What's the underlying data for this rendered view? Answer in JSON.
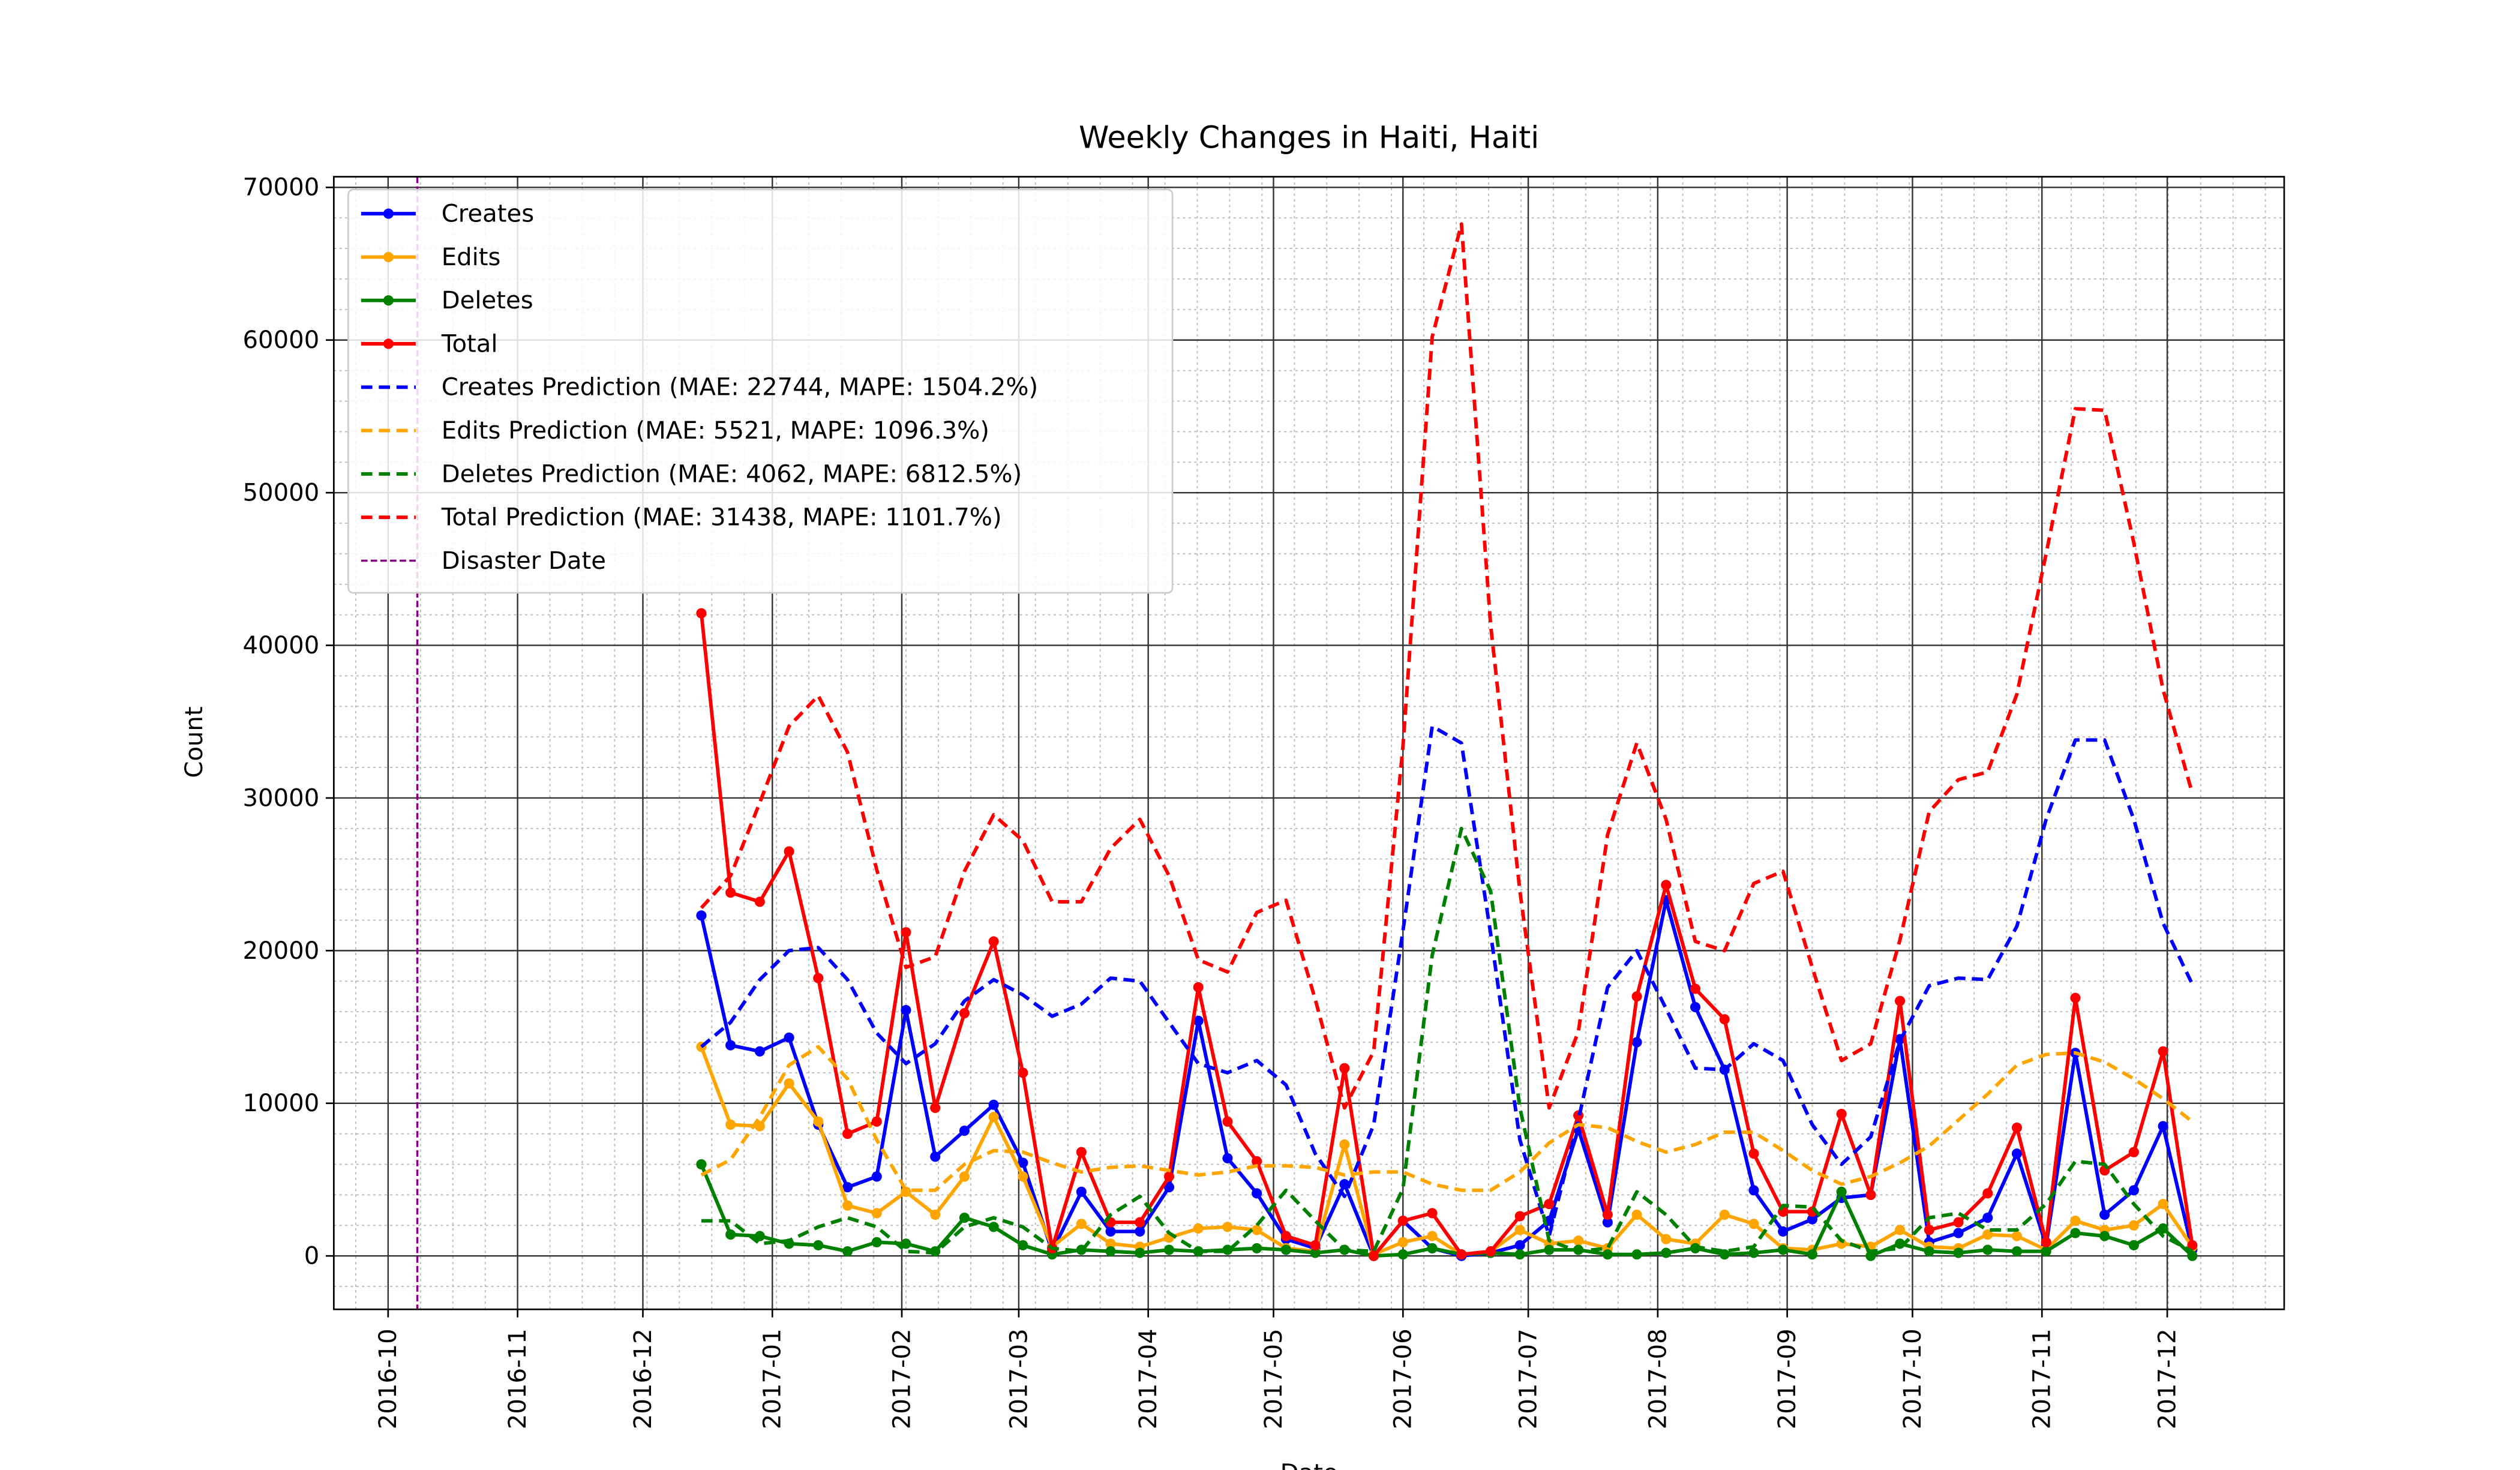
{
  "chart_data": {
    "type": "line",
    "title": "Weekly Changes in Haiti, Haiti",
    "x_label": "Date",
    "y_label": "Count",
    "x": [
      "2016-12-15",
      "2016-12-22",
      "2016-12-29",
      "2017-01-05",
      "2017-01-12",
      "2017-01-19",
      "2017-01-26",
      "2017-02-02",
      "2017-02-09",
      "2017-02-16",
      "2017-02-23",
      "2017-03-02",
      "2017-03-09",
      "2017-03-16",
      "2017-03-23",
      "2017-03-30",
      "2017-04-06",
      "2017-04-13",
      "2017-04-20",
      "2017-04-27",
      "2017-05-04",
      "2017-05-11",
      "2017-05-18",
      "2017-05-25",
      "2017-06-01",
      "2017-06-08",
      "2017-06-15",
      "2017-06-22",
      "2017-06-29",
      "2017-07-06",
      "2017-07-13",
      "2017-07-20",
      "2017-07-27",
      "2017-08-03",
      "2017-08-10",
      "2017-08-17",
      "2017-08-24",
      "2017-08-31",
      "2017-09-07",
      "2017-09-14",
      "2017-09-21",
      "2017-09-28",
      "2017-10-05",
      "2017-10-12",
      "2017-10-19",
      "2017-10-26",
      "2017-11-02",
      "2017-11-09",
      "2017-11-16",
      "2017-11-23",
      "2017-11-30",
      "2017-12-07"
    ],
    "xlim": [
      "2016-09-18",
      "2017-12-29"
    ],
    "xticks": [
      "2016-10",
      "2016-11",
      "2016-12",
      "2017-01",
      "2017-02",
      "2017-03",
      "2017-04",
      "2017-05",
      "2017-06",
      "2017-07",
      "2017-08",
      "2017-09",
      "2017-10",
      "2017-11",
      "2017-12"
    ],
    "ylim": [
      -3500,
      70700
    ],
    "yticks": [
      0,
      10000,
      20000,
      30000,
      40000,
      50000,
      60000,
      70000
    ],
    "grid": true,
    "minor_grid": true,
    "legend": "upper left",
    "disaster_date": "2016-10-08",
    "disaster_label": "Disaster Date",
    "disaster_color": "#800080",
    "series": [
      {
        "name": "Creates",
        "color": "#0000ff",
        "style": "solid",
        "marker": true,
        "values": [
          22300,
          13800,
          13400,
          14300,
          8600,
          4500,
          5200,
          16100,
          6500,
          8200,
          9900,
          6100,
          300,
          4200,
          1600,
          1600,
          4500,
          15400,
          6400,
          4100,
          1100,
          500,
          4700,
          0,
          2300,
          500,
          0,
          200,
          700,
          2300,
          8300,
          2200,
          14000,
          23300,
          16300,
          12200,
          4300,
          1600,
          2400,
          3800,
          4000,
          14200,
          900,
          1500,
          2500,
          6700,
          700,
          13300,
          2700,
          4300,
          8500,
          400
        ]
      },
      {
        "name": "Edits",
        "color": "#ffa500",
        "style": "solid",
        "marker": true,
        "values": [
          13700,
          8600,
          8500,
          11300,
          8800,
          3300,
          2800,
          4200,
          2700,
          5200,
          9100,
          5200,
          600,
          2100,
          800,
          600,
          1200,
          1800,
          1900,
          1700,
          500,
          300,
          7300,
          100,
          900,
          1300,
          100,
          300,
          1700,
          800,
          1000,
          500,
          2700,
          1100,
          800,
          2700,
          2100,
          500,
          400,
          800,
          600,
          1700,
          600,
          500,
          1400,
          1300,
          400,
          2300,
          1700,
          2000,
          3400,
          600
        ]
      },
      {
        "name": "Deletes",
        "color": "#008000",
        "style": "solid",
        "marker": true,
        "values": [
          6000,
          1400,
          1300,
          800,
          700,
          300,
          900,
          800,
          300,
          2500,
          1900,
          700,
          100,
          400,
          300,
          200,
          400,
          300,
          400,
          500,
          400,
          200,
          400,
          0,
          100,
          500,
          100,
          200,
          100,
          400,
          400,
          100,
          100,
          200,
          500,
          100,
          200,
          400,
          100,
          4200,
          0,
          800,
          300,
          200,
          400,
          300,
          300,
          1500,
          1300,
          700,
          1800,
          0
        ]
      },
      {
        "name": "Total",
        "color": "#ff0000",
        "style": "solid",
        "marker": true,
        "values": [
          42100,
          23800,
          23200,
          26500,
          18200,
          8000,
          8800,
          21200,
          9700,
          15900,
          20600,
          12000,
          500,
          6800,
          2200,
          2200,
          5200,
          17600,
          8800,
          6200,
          1300,
          700,
          12300,
          0,
          2300,
          2800,
          100,
          300,
          2600,
          3400,
          9200,
          2700,
          17000,
          24300,
          17500,
          15500,
          6700,
          2900,
          2900,
          9300,
          4000,
          16700,
          1700,
          2200,
          4100,
          8400,
          900,
          16900,
          5600,
          6800,
          13400,
          700
        ]
      },
      {
        "name": "Creates Prediction (MAE: 22744, MAPE: 1504.2%)",
        "color": "#0000ff",
        "style": "dashed",
        "marker": false,
        "values": [
          13700,
          15300,
          18100,
          20000,
          20200,
          18100,
          14600,
          12600,
          13900,
          16700,
          18100,
          17100,
          15700,
          16500,
          18200,
          18000,
          15300,
          12600,
          12000,
          12800,
          11200,
          6700,
          3900,
          8600,
          21300,
          34700,
          33600,
          21100,
          7600,
          1300,
          8900,
          17600,
          20000,
          16200,
          12300,
          12200,
          13900,
          12800,
          8600,
          6000,
          7800,
          14100,
          17700,
          18200,
          18100,
          21600,
          28600,
          33800,
          33800,
          28600,
          21800,
          17800
        ]
      },
      {
        "name": "Edits Prediction (MAE: 5521, MAPE: 1096.3%)",
        "color": "#ffa500",
        "style": "dashed",
        "marker": false,
        "values": [
          5300,
          6300,
          9100,
          12500,
          13700,
          11600,
          7600,
          4300,
          4300,
          6000,
          6900,
          6800,
          6100,
          5500,
          5800,
          5900,
          5600,
          5300,
          5500,
          5900,
          5900,
          5800,
          5300,
          5500,
          5500,
          4700,
          4300,
          4300,
          5500,
          7400,
          8600,
          8400,
          7500,
          6800,
          7300,
          8100,
          8100,
          6900,
          5600,
          4700,
          5200,
          6100,
          7200,
          8900,
          10600,
          12500,
          13200,
          13300,
          12700,
          11600,
          10300,
          8800
        ]
      },
      {
        "name": "Deletes Prediction (MAE: 4062, MAPE: 6812.5%)",
        "color": "#008000",
        "style": "dashed",
        "marker": false,
        "values": [
          2300,
          2300,
          800,
          1000,
          1900,
          2500,
          1900,
          300,
          200,
          1900,
          2500,
          1900,
          500,
          300,
          2700,
          3900,
          1500,
          300,
          300,
          2000,
          4300,
          2300,
          400,
          300,
          4400,
          19700,
          28000,
          23900,
          9700,
          1000,
          300,
          500,
          4200,
          2700,
          600,
          300,
          600,
          3300,
          3200,
          1000,
          300,
          500,
          2500,
          2800,
          1700,
          1700,
          3400,
          6200,
          6000,
          3400,
          1300,
          300
        ]
      },
      {
        "name": "Total Prediction (MAE: 31438, MAPE: 1101.7%)",
        "color": "#ff0000",
        "style": "dashed",
        "marker": false,
        "values": [
          22800,
          24900,
          29700,
          34700,
          36700,
          33000,
          25300,
          18900,
          19600,
          25200,
          28900,
          27200,
          23200,
          23200,
          26700,
          28600,
          24900,
          19400,
          18600,
          22500,
          23300,
          16800,
          9700,
          13400,
          33400,
          60200,
          67600,
          41300,
          23900,
          9700,
          14700,
          27600,
          33600,
          28600,
          20600,
          20000,
          24400,
          25200,
          18900,
          12800,
          13900,
          20700,
          29100,
          31200,
          31700,
          36800,
          46000,
          55500,
          55400,
          46700,
          37100,
          30300
        ]
      }
    ]
  }
}
